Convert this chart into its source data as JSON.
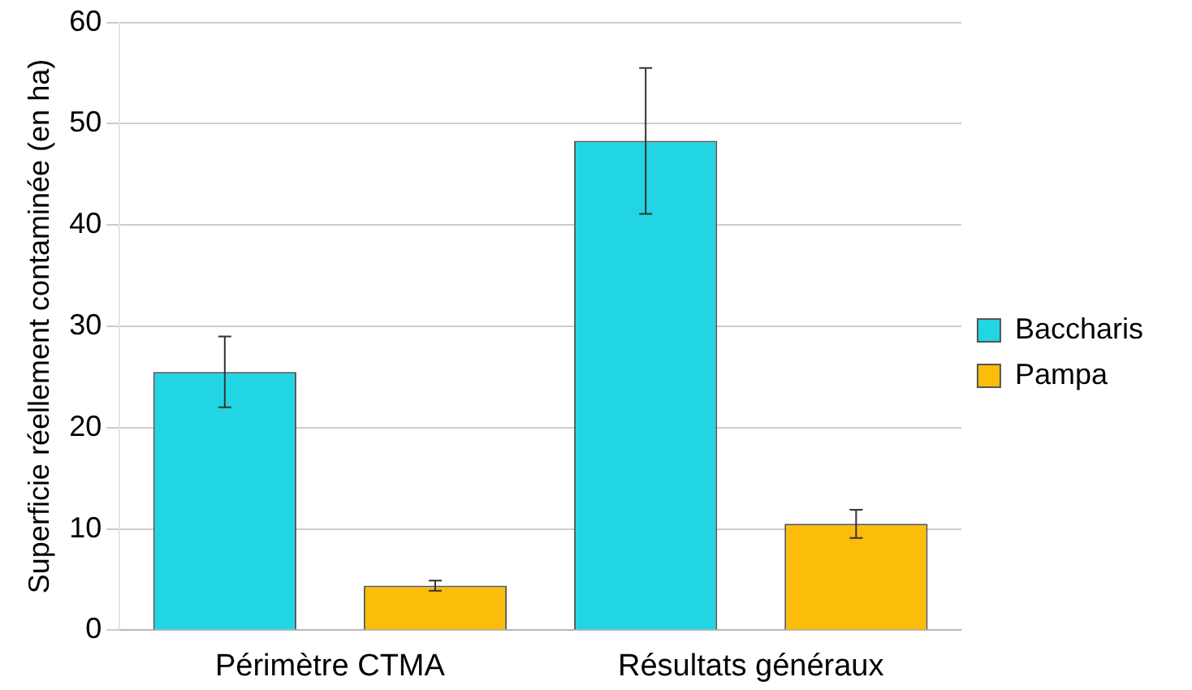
{
  "chart_data": {
    "type": "bar",
    "ylabel": "Superficie réellement contaminée (en ha)",
    "categories": [
      "Périmètre CTMA",
      "Résultats généraux"
    ],
    "series": [
      {
        "name": "Baccharis",
        "color": "#22d5e5",
        "values": [
          25.5,
          48.3
        ],
        "errors": [
          3.5,
          7.2
        ]
      },
      {
        "name": "Pampa",
        "color": "#fbbc0a",
        "values": [
          4.4,
          10.5
        ],
        "errors": [
          0.5,
          1.4
        ]
      }
    ],
    "ylim": [
      0,
      60
    ],
    "yticks": [
      0,
      10,
      20,
      30,
      40,
      50,
      60
    ],
    "grid": "y",
    "legend": "right"
  }
}
